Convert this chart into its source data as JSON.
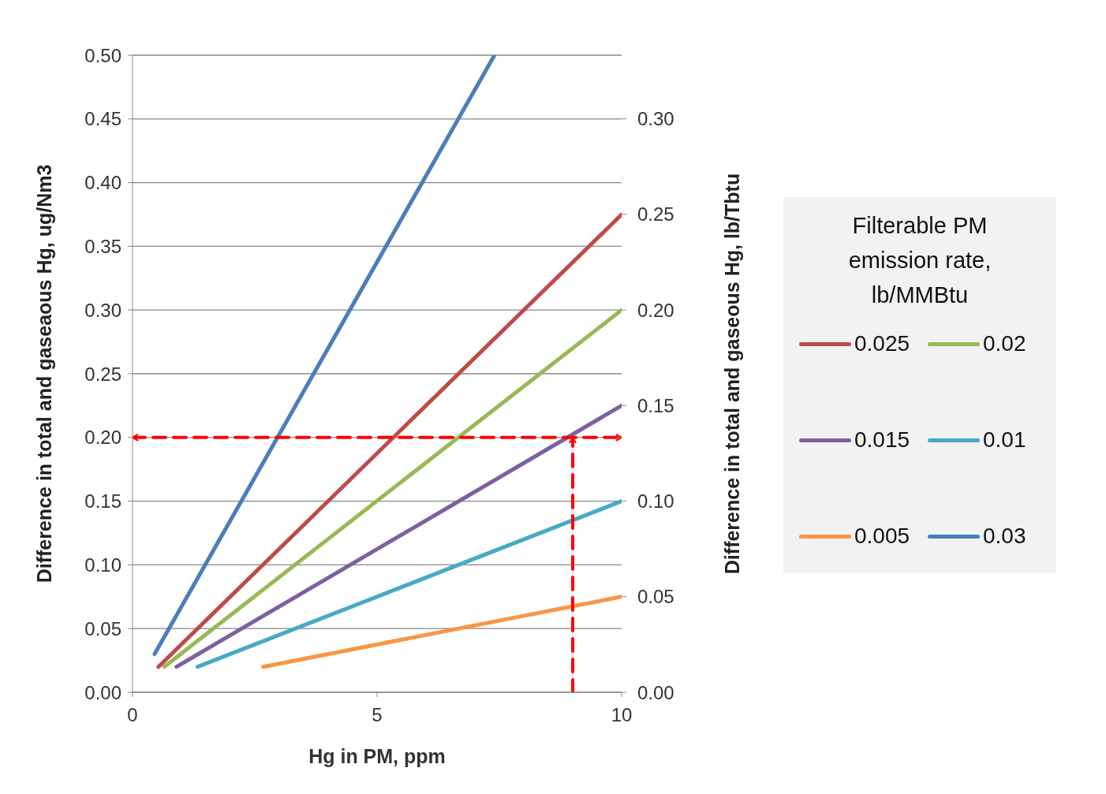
{
  "chart_data": {
    "type": "line",
    "xlabel": "Hg in PM, ppm",
    "ylabel": "Difference in total and gaseaous Hg, ug/Nm3",
    "y2label": "Difference in total and gaseous Hg, lb/Tbtu",
    "legend_title": "Filterable PM emission rate, lb/MMBtu",
    "xlim": [
      0,
      10
    ],
    "xticks": [
      0,
      5,
      10
    ],
    "ylim": [
      0,
      0.5
    ],
    "yticks": [
      {
        "value": 0,
        "label": "0.00"
      },
      {
        "value": 0.05,
        "label": "0.05"
      },
      {
        "value": 0.1,
        "label": "0.10"
      },
      {
        "value": 0.15,
        "label": "0.15"
      },
      {
        "value": 0.2,
        "label": "0.20"
      },
      {
        "value": 0.25,
        "label": "0.25"
      },
      {
        "value": 0.3,
        "label": "0.30"
      },
      {
        "value": 0.35,
        "label": "0.35"
      },
      {
        "value": 0.4,
        "label": "0.40"
      },
      {
        "value": 0.45,
        "label": "0.45"
      },
      {
        "value": 0.5,
        "label": "0.50"
      }
    ],
    "y2lim": [
      0,
      0.3333
    ],
    "y2ticks": [
      {
        "value": 0,
        "label": "0.00"
      },
      {
        "value": 0.05,
        "label": "0.05"
      },
      {
        "value": 0.1,
        "label": "0.10"
      },
      {
        "value": 0.15,
        "label": "0.15"
      },
      {
        "value": 0.2,
        "label": "0.20"
      },
      {
        "value": 0.25,
        "label": "0.25"
      },
      {
        "value": 0.3,
        "label": "0.30"
      }
    ],
    "grid": "y",
    "legend": "right",
    "marker": "none",
    "line_style": "solid",
    "series": [
      {
        "name": "0.025",
        "color": "#be4b48",
        "x": [
          0.53,
          10
        ],
        "values": [
          0.02,
          0.375
        ]
      },
      {
        "name": "0.02",
        "color": "#98b954",
        "x": [
          0.65,
          10
        ],
        "values": [
          0.02,
          0.3
        ]
      },
      {
        "name": "0.015",
        "color": "#7d60a0",
        "x": [
          0.9,
          10
        ],
        "values": [
          0.02,
          0.225
        ]
      },
      {
        "name": "0.01",
        "color": "#46aac5",
        "x": [
          1.33,
          10
        ],
        "values": [
          0.02,
          0.15
        ]
      },
      {
        "name": "0.005",
        "color": "#f79646",
        "x": [
          2.67,
          10
        ],
        "values": [
          0.02,
          0.075
        ]
      },
      {
        "name": "0.03",
        "color": "#4a7ebb",
        "x": [
          0.45,
          7.4
        ],
        "values": [
          0.03,
          0.5
        ]
      },
      {
        "color": "#ff0000",
        "line_style": "dashed",
        "x": [
          0,
          10
        ],
        "values": [
          0.2,
          0.2
        ]
      },
      {
        "color": "#ff0000",
        "line_style": "dashed",
        "x": [
          9,
          9
        ],
        "values": [
          0,
          0.2
        ]
      }
    ]
  }
}
